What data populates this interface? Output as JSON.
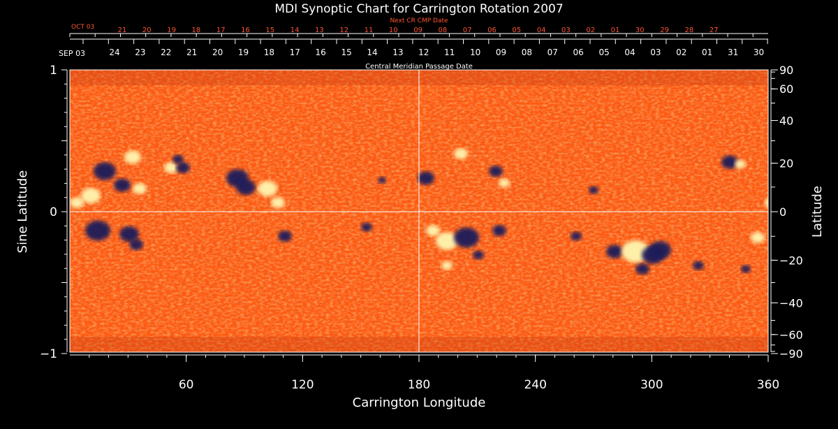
{
  "title": "MDI Synoptic Chart for Carrington Rotation 2007",
  "next_cr_label": "Next CR CMP Date",
  "cmp_label": "Central Meridian Passage Date",
  "x_axis_label": "Carrington Longitude",
  "left_axis_label": "Sine Latitude",
  "right_axis_label": "Latitude",
  "next_cr_start": "OCT 03",
  "next_cr_dates": [
    "21",
    "20",
    "19",
    "18",
    "17",
    "16",
    "15",
    "14",
    "13",
    "12",
    "11",
    "10",
    "09",
    "08",
    "07",
    "06",
    "05",
    "04",
    "03",
    "02",
    "01",
    "30",
    "29",
    "28",
    "27"
  ],
  "cmp_start": "SEP 03",
  "cmp_dates": [
    "24",
    "23",
    "22",
    "21",
    "20",
    "19",
    "18",
    "17",
    "16",
    "15",
    "14",
    "13",
    "12",
    "11",
    "10",
    "09",
    "08",
    "07",
    "06",
    "05",
    "04",
    "03",
    "02",
    "01",
    "31",
    "30"
  ],
  "x_ticks": [
    60,
    120,
    180,
    240,
    300,
    360
  ],
  "x_tick_labels": [
    "60",
    "120",
    "180",
    "240",
    "300",
    "360"
  ],
  "left_ticks": [
    1,
    0,
    -1
  ],
  "left_tick_labels": [
    "1",
    "0",
    "−1"
  ],
  "right_ticks": [
    90,
    60,
    40,
    20,
    0,
    -20,
    -40,
    -60,
    -90
  ],
  "right_tick_labels": [
    "90",
    "60",
    "40",
    "20",
    "0",
    "−20",
    "−40",
    "−60",
    "−90"
  ],
  "x_range": [
    0,
    360
  ],
  "y_range": [
    -1,
    1
  ],
  "colors": {
    "background": "#000000",
    "map_base": "#ff5a12",
    "positive_field": "#fff6b0",
    "negative_field": "#1c1a5a",
    "next_cr_text": "#ff5533",
    "axis": "#ffffff"
  }
}
